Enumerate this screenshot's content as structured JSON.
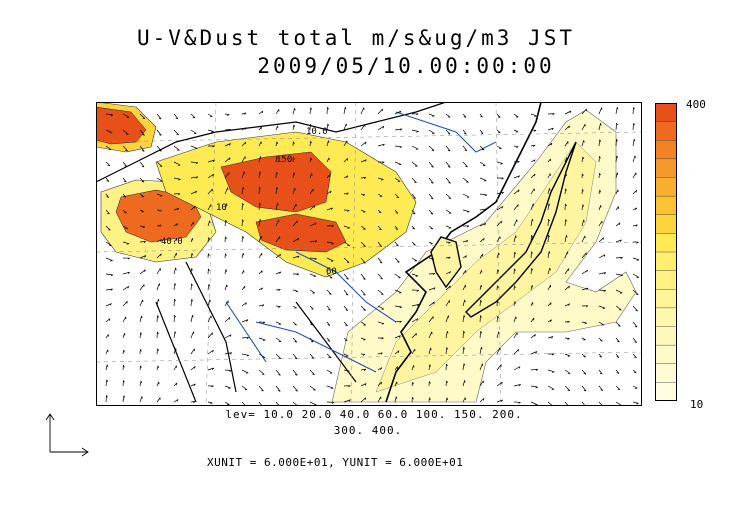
{
  "title": {
    "line1": "U-V&Dust total m/s&ug/m3 JST",
    "line2": "2009/05/10.00:00:00"
  },
  "colorbar": {
    "max_label": "400",
    "min_label": "10",
    "colors": [
      "#e8501a",
      "#ee6a1e",
      "#f28324",
      "#f59a2a",
      "#f8ae2e",
      "#fbc233",
      "#fdd43c",
      "#feea53",
      "#ffef6e",
      "#fff285",
      "#fff598",
      "#fff7ab",
      "#fff8bb",
      "#fffac8",
      "#fffbd3",
      "#fffce0"
    ]
  },
  "levels": {
    "line1": "lev= 10.0 20.0 40.0 60.0 100. 150. 200.",
    "line2": "300. 400."
  },
  "units": "XUNIT = 6.000E+01, YUNIT = 6.000E+01",
  "map_labels": [
    "150",
    "40.0",
    "10.0",
    "60",
    "10"
  ]
}
